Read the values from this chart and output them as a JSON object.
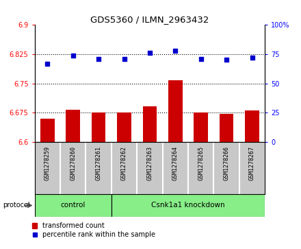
{
  "title": "GDS5360 / ILMN_2963432",
  "samples": [
    "GSM1278259",
    "GSM1278260",
    "GSM1278261",
    "GSM1278262",
    "GSM1278263",
    "GSM1278264",
    "GSM1278265",
    "GSM1278266",
    "GSM1278267"
  ],
  "bar_values": [
    6.66,
    6.683,
    6.675,
    6.675,
    6.692,
    6.758,
    6.675,
    6.672,
    6.681
  ],
  "dot_values": [
    67,
    74,
    71,
    71,
    76,
    78,
    71,
    70,
    72
  ],
  "groups": [
    {
      "label": "control",
      "start": 0,
      "end": 3
    },
    {
      "label": "Csnk1a1 knockdown",
      "start": 3,
      "end": 9
    }
  ],
  "ylim_left": [
    6.6,
    6.9
  ],
  "ylim_right": [
    0,
    100
  ],
  "yticks_left": [
    6.6,
    6.675,
    6.75,
    6.825,
    6.9
  ],
  "yticks_right": [
    0,
    25,
    50,
    75,
    100
  ],
  "ytick_labels_left": [
    "6.6",
    "6.675",
    "6.75",
    "6.825",
    "6.9"
  ],
  "ytick_labels_right": [
    "0",
    "25",
    "50",
    "75",
    "100%"
  ],
  "bar_color": "#cc0000",
  "dot_color": "#0000cc",
  "group_bg_color": "#88ee88",
  "sample_bg_color": "#c8c8c8",
  "protocol_label": "protocol",
  "legend_bar_label": "transformed count",
  "legend_dot_label": "percentile rank within the sample",
  "hline_positions": [
    6.675,
    6.75,
    6.825
  ]
}
